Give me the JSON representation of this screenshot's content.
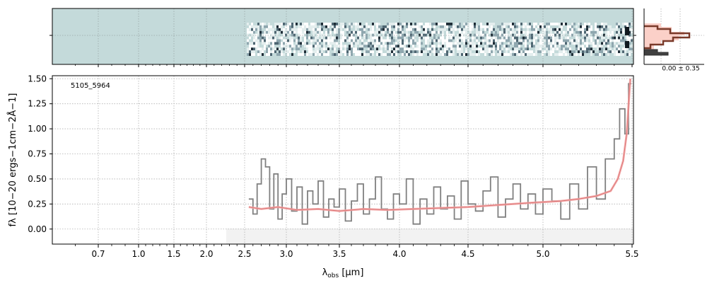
{
  "chart_data": {
    "type": "line",
    "id_label": "5105_5964",
    "xlabel": "λobs [μm]",
    "xlabel_main": "λ",
    "xlabel_sub": "obs",
    "xlabel_unit": " [μm]",
    "ylabel": "fλ [10−20 ergs−1cm−2Å−1]",
    "xlim": [
      0.5,
      5.5
    ],
    "ylim": [
      -0.15,
      1.53
    ],
    "x_scale": "spectral (non-linear: compressed below 2.5 μm)",
    "x_ticks": [
      0.7,
      1.0,
      1.5,
      2.0,
      2.5,
      3.0,
      3.5,
      4.0,
      4.5,
      5.0,
      5.5
    ],
    "x_tick_labels": [
      "0.7",
      "1.0",
      "1.5",
      "2.0",
      "2.5",
      "3.0",
      "3.5",
      "4.0",
      "4.5",
      "5.0",
      "5.5"
    ],
    "y_ticks": [
      0.0,
      0.25,
      0.5,
      0.75,
      1.0,
      1.25,
      1.5
    ],
    "y_tick_labels": [
      "0.00",
      "0.25",
      "0.50",
      "0.75",
      "1.00",
      "1.25",
      "1.50"
    ],
    "grid": true,
    "histogram_label": "0.00 ± 0.35",
    "series": [
      {
        "role": "data-spectrum",
        "color": "#808080",
        "style": "steps",
        "x": [
          2.55,
          2.6,
          2.65,
          2.7,
          2.75,
          2.8,
          2.85,
          2.9,
          2.95,
          3.0,
          3.05,
          3.1,
          3.15,
          3.2,
          3.25,
          3.3,
          3.35,
          3.4,
          3.45,
          3.5,
          3.55,
          3.6,
          3.65,
          3.7,
          3.75,
          3.8,
          3.85,
          3.9,
          3.95,
          4.0,
          4.05,
          4.1,
          4.15,
          4.2,
          4.25,
          4.3,
          4.35,
          4.4,
          4.45,
          4.5,
          4.55,
          4.6,
          4.65,
          4.7,
          4.75,
          4.8,
          4.85,
          4.9,
          4.95,
          5.0,
          5.05,
          5.1,
          5.15,
          5.2,
          5.25,
          5.3,
          5.35,
          5.4,
          5.43,
          5.46,
          5.48
        ],
        "y": [
          0.3,
          0.15,
          0.45,
          0.7,
          0.62,
          0.2,
          0.55,
          0.1,
          0.35,
          0.5,
          0.18,
          0.42,
          0.05,
          0.38,
          0.25,
          0.48,
          0.12,
          0.3,
          0.22,
          0.4,
          0.08,
          0.28,
          0.45,
          0.15,
          0.3,
          0.52,
          0.2,
          0.1,
          0.35,
          0.25,
          0.5,
          0.05,
          0.3,
          0.15,
          0.42,
          0.2,
          0.33,
          0.1,
          0.48,
          0.25,
          0.18,
          0.38,
          0.52,
          0.12,
          0.3,
          0.45,
          0.2,
          0.35,
          0.15,
          0.4,
          0.28,
          0.1,
          0.45,
          0.2,
          0.62,
          0.3,
          0.7,
          0.9,
          1.2,
          0.95,
          1.45
        ]
      },
      {
        "role": "model",
        "color": "#f4a6a6",
        "style": "line",
        "x": [
          2.55,
          2.7,
          2.9,
          3.1,
          3.3,
          3.5,
          3.7,
          3.9,
          4.1,
          4.3,
          4.5,
          4.7,
          4.9,
          5.1,
          5.2,
          5.3,
          5.38,
          5.42,
          5.45,
          5.47,
          5.49
        ],
        "y": [
          0.22,
          0.2,
          0.22,
          0.19,
          0.2,
          0.18,
          0.2,
          0.19,
          0.2,
          0.21,
          0.22,
          0.24,
          0.26,
          0.28,
          0.3,
          0.33,
          0.38,
          0.5,
          0.68,
          0.95,
          1.5
        ]
      }
    ]
  }
}
